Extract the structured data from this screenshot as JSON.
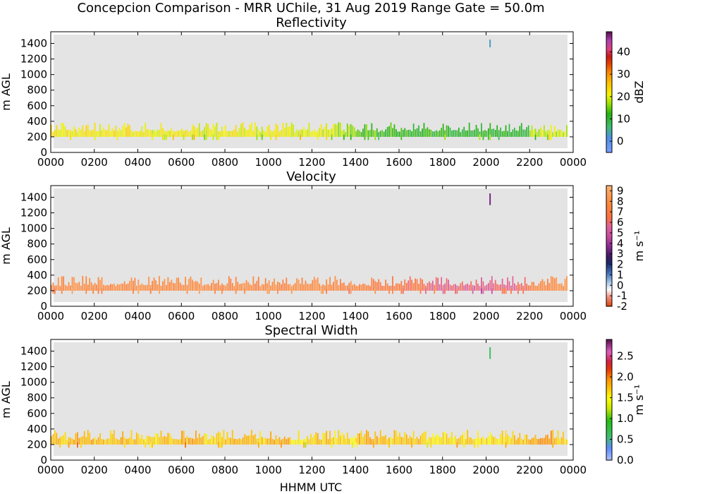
{
  "figure": {
    "title": "Concepcion Comparison - MRR UChile, 31 Aug 2019 Range Gate = 50.0m",
    "xlabel": "HHMM UTC"
  },
  "chart_data": [
    {
      "type": "heatmap",
      "title": "Reflectivity",
      "ylabel": "m AGL",
      "x_ticks": [
        "0000",
        "0200",
        "0400",
        "0600",
        "0800",
        "1000",
        "1200",
        "1400",
        "1600",
        "1800",
        "2000",
        "2200",
        "0000"
      ],
      "y_ticks": [
        "0",
        "200",
        "400",
        "600",
        "800",
        "1000",
        "1200",
        "1400"
      ],
      "xlim_hours": [
        0,
        24
      ],
      "ylim": [
        0,
        1550
      ],
      "colorbar": {
        "label": "dBZ",
        "range": [
          -5,
          49
        ],
        "ticks": [
          "0",
          "10",
          "20",
          "30",
          "40"
        ],
        "tick_values": [
          0,
          10,
          20,
          30,
          40
        ]
      },
      "echo_band": {
        "base_m": 200,
        "top_m": 300,
        "mean_value_by_hour": [
          22,
          22,
          22,
          22,
          21,
          21,
          21,
          21,
          21,
          21,
          21,
          20,
          20,
          17,
          15,
          13,
          12,
          12,
          11,
          11,
          11,
          11,
          19,
          19
        ],
        "isolated_echo": {
          "time": "2000",
          "height_range_m": [
            1350,
            1450
          ],
          "value": 3
        }
      }
    },
    {
      "type": "heatmap",
      "title": "Velocity",
      "ylabel": "m s^-1",
      "ylabel_left": "m AGL",
      "x_ticks": [
        "0000",
        "0200",
        "0400",
        "0600",
        "0800",
        "1000",
        "1200",
        "1400",
        "1600",
        "1800",
        "2000",
        "2200",
        "0000"
      ],
      "y_ticks": [
        "0",
        "200",
        "400",
        "600",
        "800",
        "1000",
        "1200",
        "1400"
      ],
      "xlim_hours": [
        0,
        24
      ],
      "ylim": [
        0,
        1550
      ],
      "colorbar": {
        "label": "m s^-1",
        "range": [
          -2,
          9.5
        ],
        "ticks": [
          "-2",
          "-1",
          "0",
          "1",
          "2",
          "3",
          "4",
          "5",
          "6",
          "7",
          "8",
          "9"
        ],
        "tick_values": [
          -2,
          -1,
          0,
          1,
          2,
          3,
          4,
          5,
          6,
          7,
          8,
          9
        ]
      },
      "echo_band": {
        "base_m": 200,
        "top_m": 300,
        "mean_value_by_hour": [
          7.8,
          7.8,
          7.8,
          7.8,
          7.8,
          7.8,
          7.8,
          7.8,
          7.8,
          7.8,
          7.8,
          7.8,
          7.8,
          7.6,
          7.2,
          6.9,
          6.6,
          6.0,
          5.8,
          5.8,
          5.8,
          6.2,
          7.6,
          7.8
        ],
        "isolated_echo": {
          "time": "2000",
          "height_range_m": [
            1300,
            1450
          ],
          "value": 3.5
        }
      }
    },
    {
      "type": "heatmap",
      "title": "Spectral Width",
      "ylabel": "m s^-1",
      "ylabel_left": "m AGL",
      "x_ticks": [
        "0000",
        "0200",
        "0400",
        "0600",
        "0800",
        "1000",
        "1200",
        "1400",
        "1600",
        "1800",
        "2000",
        "2200",
        "0000"
      ],
      "y_ticks": [
        "0",
        "200",
        "400",
        "600",
        "800",
        "1000",
        "1200",
        "1400"
      ],
      "xlim_hours": [
        0,
        24
      ],
      "ylim": [
        0,
        1550
      ],
      "colorbar": {
        "label": "m s^-1",
        "range": [
          0,
          2.9
        ],
        "ticks": [
          "0.0",
          "0.5",
          "1.0",
          "1.5",
          "2.0",
          "2.5"
        ],
        "tick_values": [
          0,
          0.5,
          1,
          1.5,
          2,
          2.5
        ]
      },
      "echo_band": {
        "base_m": 200,
        "top_m": 300,
        "mean_value_by_hour": [
          1.7,
          1.8,
          1.7,
          1.8,
          1.6,
          1.7,
          1.8,
          1.7,
          1.8,
          1.7,
          1.8,
          1.6,
          1.7,
          1.6,
          1.8,
          1.7,
          1.7,
          1.6,
          1.6,
          1.6,
          1.6,
          1.7,
          1.9,
          1.7
        ],
        "isolated_echo": {
          "time": "2000",
          "height_range_m": [
            1300,
            1450
          ],
          "value": 0.6
        }
      }
    }
  ]
}
